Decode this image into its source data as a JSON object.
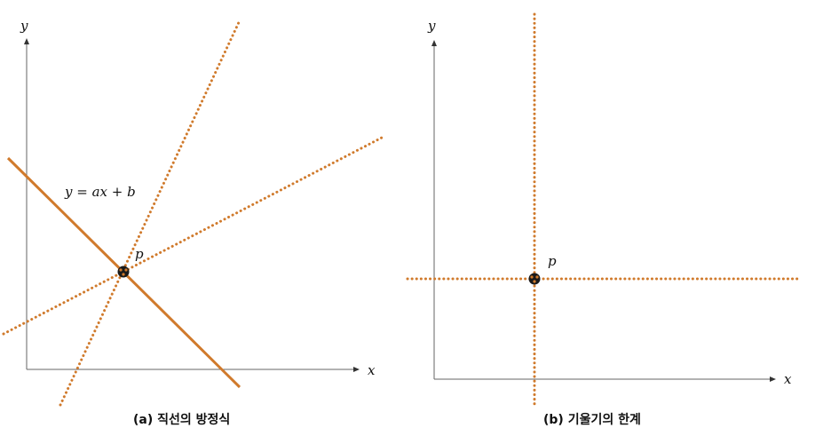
{
  "panel_a": {
    "y_axis_label": "y",
    "x_axis_label": "x",
    "equation_label": "y = ax + b",
    "point_label": "p",
    "caption": "(a)  직선의 방정식"
  },
  "panel_b": {
    "y_axis_label": "y",
    "x_axis_label": "x",
    "point_label": "p",
    "caption": "(b)  기울기의 한계"
  },
  "colors": {
    "line": "#d07a2c",
    "axis": "#666666",
    "point": "#1a1a1a"
  }
}
